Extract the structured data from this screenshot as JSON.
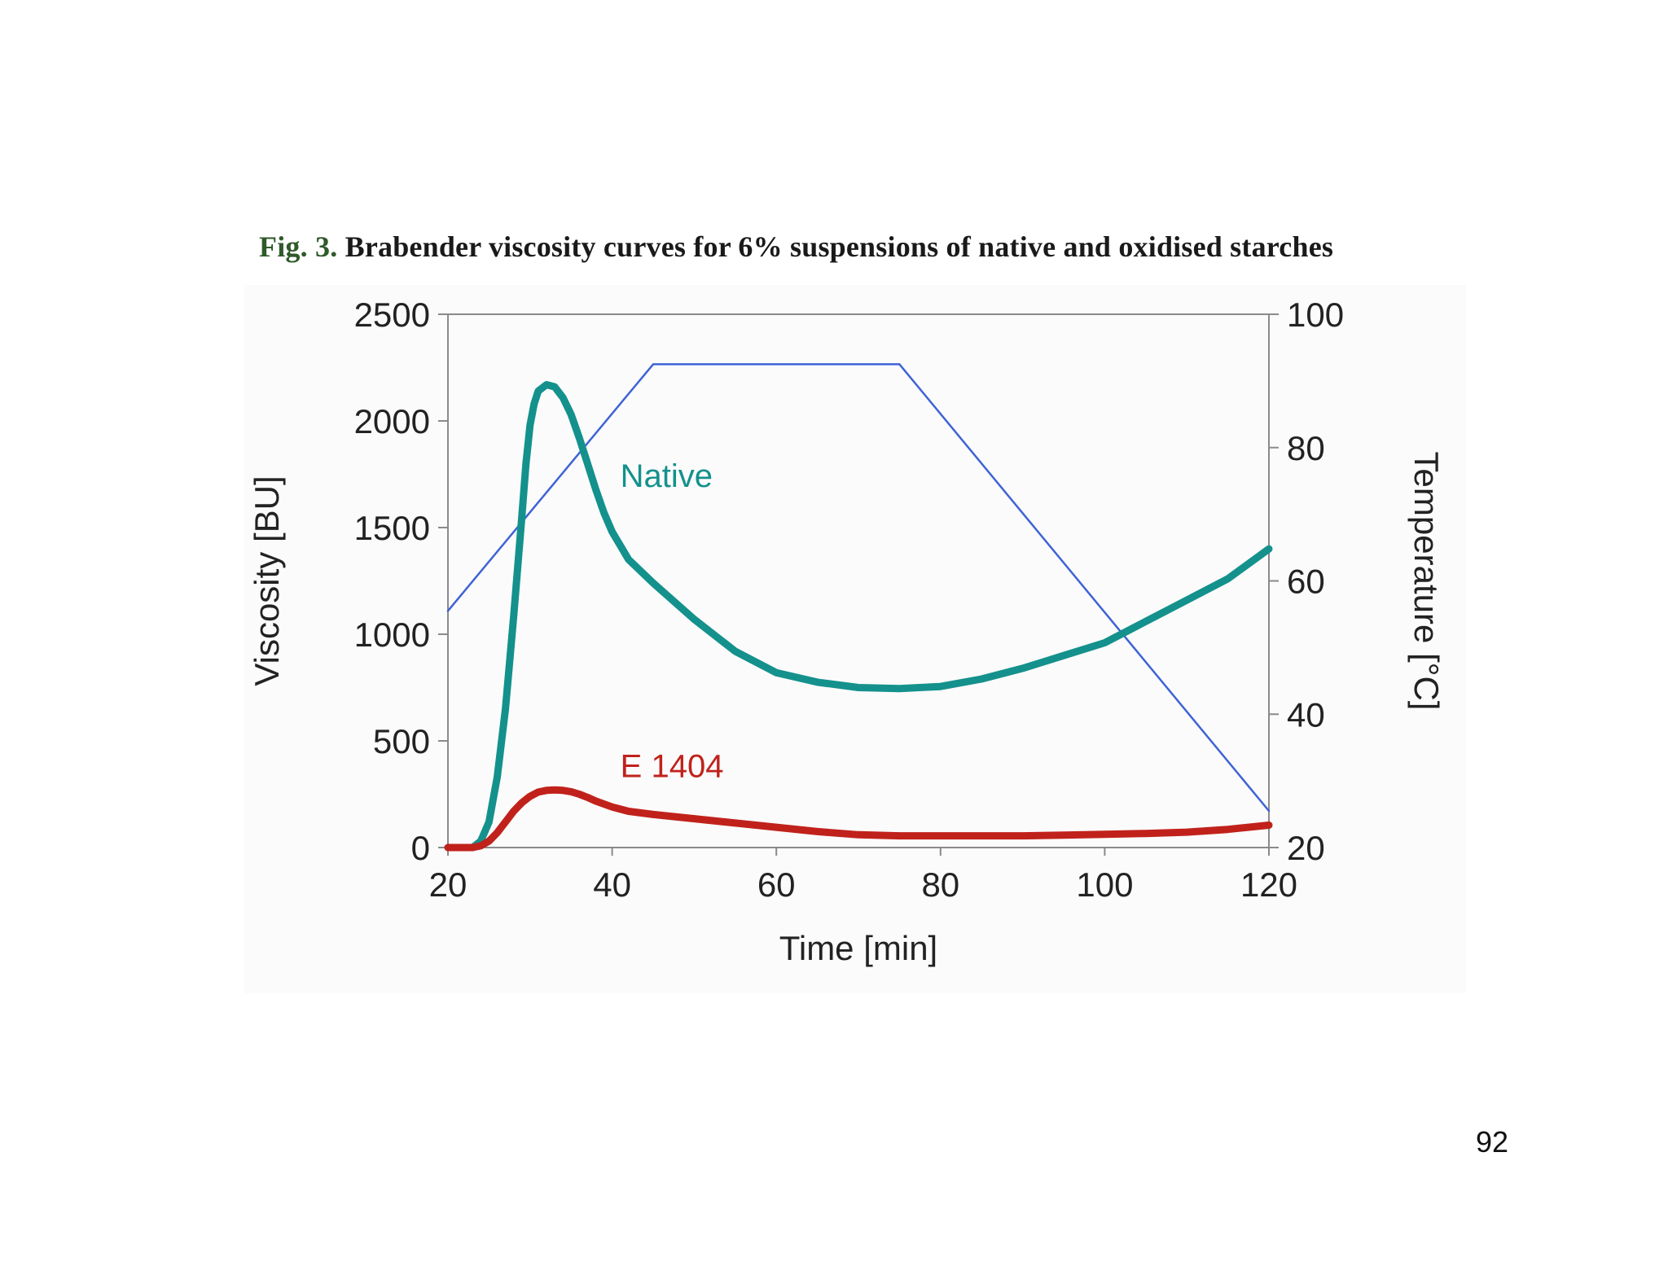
{
  "page_number": "92",
  "caption": {
    "label": "Fig. 3.",
    "text": " Brabender viscosity curves for 6% suspensions of native and oxidised starches"
  },
  "chart_data": {
    "type": "line",
    "title": "Fig. 3. Brabender viscosity curves for 6% suspensions of native and oxidised starches",
    "xlabel": "Time [min]",
    "ylabel": "Viscosity [BU]",
    "y2label": "Temperature [°C]",
    "xlim": [
      20,
      120
    ],
    "ylim": [
      0,
      2500
    ],
    "y2lim": [
      20,
      100
    ],
    "xticks": [
      20,
      40,
      60,
      80,
      100,
      120
    ],
    "yticks": [
      0,
      500,
      1000,
      1500,
      2000,
      2500
    ],
    "y2ticks": [
      20,
      40,
      60,
      80,
      100
    ],
    "grid": false,
    "colors": {
      "native": "#14918c",
      "e1404": "#c0221b",
      "temperature": "#3d63d6",
      "axis": "#8a8a8a",
      "text": "#222222"
    },
    "series": [
      {
        "name": "Native",
        "label": "Native",
        "axis": "left",
        "x": [
          20,
          23,
          24,
          25,
          26,
          27,
          28,
          29,
          29.5,
          30,
          30.5,
          31,
          32,
          33,
          34,
          35,
          36,
          37,
          38,
          39,
          40,
          42,
          45,
          50,
          55,
          60,
          65,
          70,
          75,
          80,
          85,
          90,
          95,
          100,
          105,
          110,
          115,
          120
        ],
        "values": [
          0,
          0,
          30,
          120,
          330,
          650,
          1080,
          1550,
          1800,
          1980,
          2080,
          2140,
          2170,
          2160,
          2110,
          2030,
          1920,
          1800,
          1680,
          1570,
          1480,
          1350,
          1240,
          1070,
          920,
          820,
          775,
          750,
          745,
          755,
          790,
          840,
          900,
          960,
          1060,
          1160,
          1260,
          1400
        ]
      },
      {
        "name": "E 1404",
        "label": "E 1404",
        "axis": "left",
        "x": [
          20,
          23,
          24,
          25,
          26,
          27,
          28,
          29,
          30,
          31,
          32,
          33,
          34,
          35,
          36,
          37,
          38,
          40,
          42,
          45,
          50,
          55,
          60,
          65,
          70,
          75,
          80,
          85,
          90,
          95,
          100,
          105,
          110,
          115,
          120
        ],
        "values": [
          0,
          0,
          8,
          30,
          70,
          120,
          170,
          210,
          240,
          260,
          268,
          270,
          268,
          262,
          250,
          235,
          218,
          190,
          170,
          155,
          135,
          115,
          95,
          75,
          60,
          55,
          55,
          55,
          55,
          58,
          62,
          66,
          72,
          85,
          105
        ]
      },
      {
        "name": "Temperature",
        "axis": "right",
        "x": [
          20,
          45,
          75,
          120
        ],
        "values": [
          55.5,
          92.5,
          92.5,
          25.5
        ]
      }
    ]
  }
}
